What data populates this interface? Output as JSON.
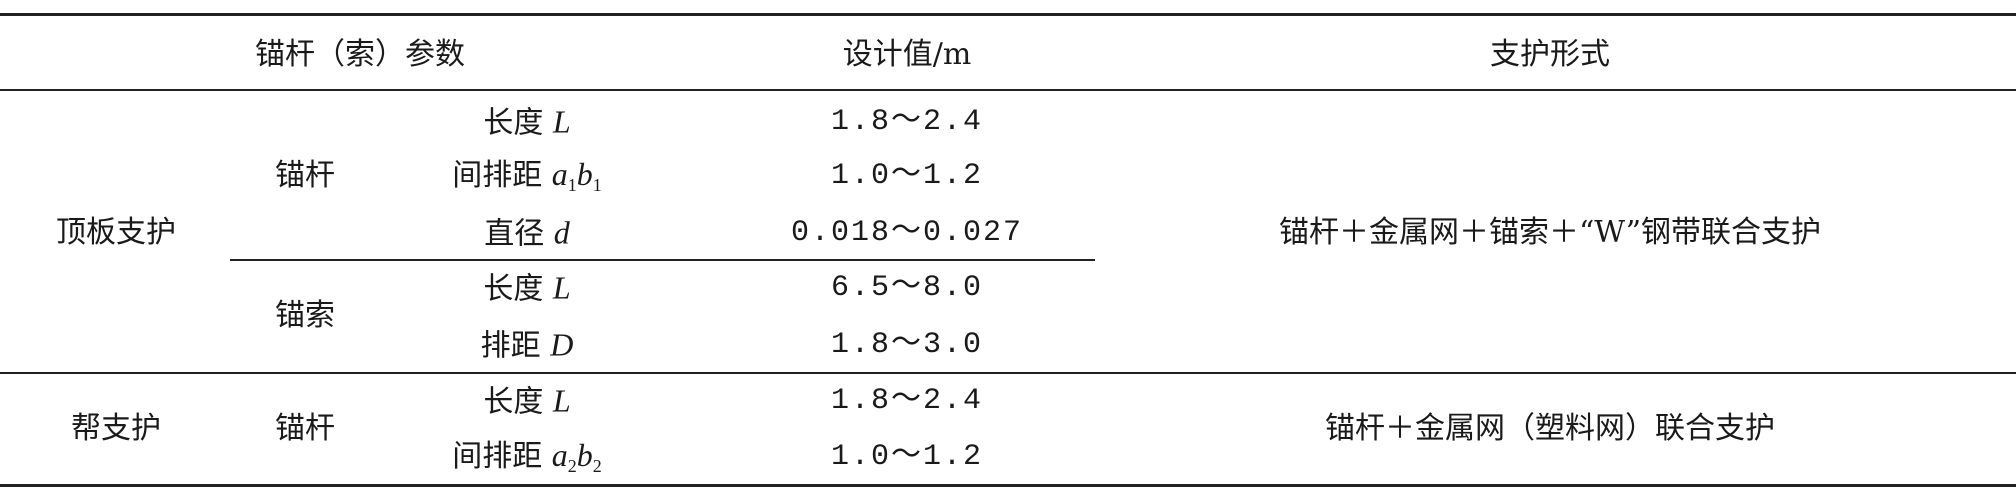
{
  "header": {
    "param": "锚杆（索）参数",
    "value": "设计值/m",
    "support": "支护形式"
  },
  "roof": {
    "group": "顶板支护",
    "bolt": {
      "label": "锚杆",
      "rows": [
        {
          "name": "长度",
          "sym": "L",
          "sub": "",
          "sym2": "",
          "sub2": "",
          "value": "1.8～2.4"
        },
        {
          "name": "间排距",
          "sym": "a",
          "sub": "1",
          "sym2": "b",
          "sub2": "1",
          "value": "1.0～1.2"
        },
        {
          "name": "直径",
          "sym": "d",
          "sub": "",
          "sym2": "",
          "sub2": "",
          "value": "0.018～0.027"
        }
      ]
    },
    "cable": {
      "label": "锚索",
      "rows": [
        {
          "name": "长度",
          "sym": "L",
          "value": "6.5～8.0"
        },
        {
          "name": "排距",
          "sym": "D",
          "value": "1.8～3.0"
        }
      ]
    },
    "support": "锚杆＋金属网＋锚索＋“W”钢带联合支护"
  },
  "rib": {
    "group": "帮支护",
    "bolt": {
      "label": "锚杆",
      "rows": [
        {
          "name": "长度",
          "sym": "L",
          "value": "1.8～2.4"
        },
        {
          "name": "间排距",
          "sym": "a",
          "sub": "2",
          "sym2": "b",
          "sub2": "2",
          "value": "1.0～1.2"
        }
      ]
    },
    "support": "锚杆＋金属网（塑料网）联合支护"
  }
}
